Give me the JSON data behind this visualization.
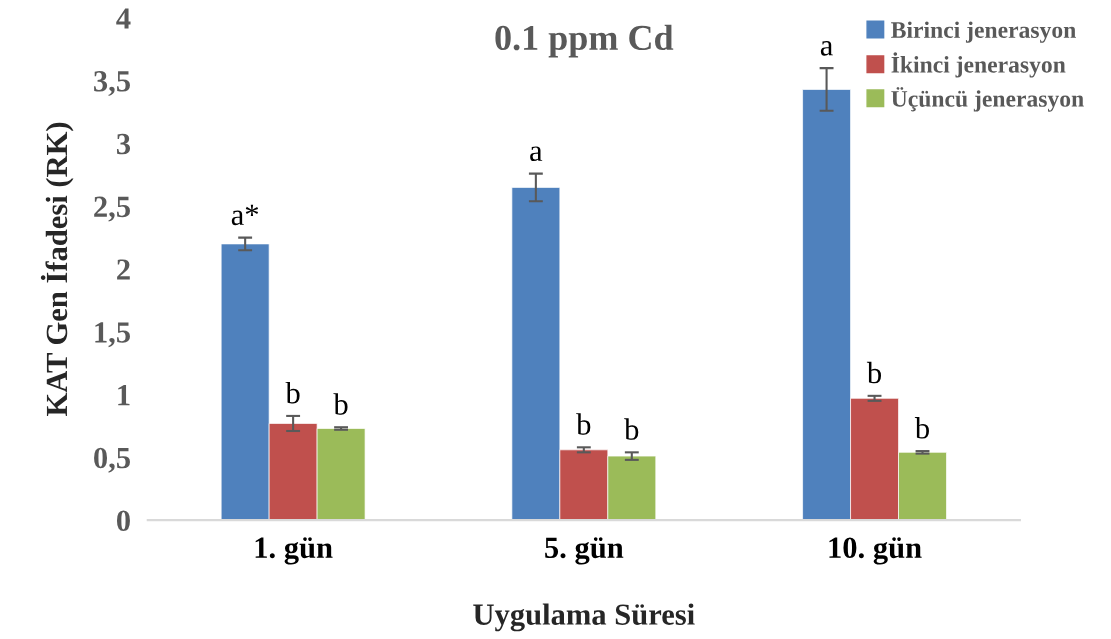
{
  "chart_data": {
    "type": "bar",
    "title": "0.1 ppm Cd",
    "xlabel": "Uygulama Süresi",
    "ylabel": "KAT Gen İfadesi (RK)",
    "categories": [
      "1. gün",
      "5. gün",
      "10. gün"
    ],
    "series": [
      {
        "name": "Birinci jenerasyon",
        "color": "#4f81bd",
        "values": [
          2.2,
          2.65,
          3.43
        ],
        "errors": [
          0.05,
          0.11,
          0.17
        ],
        "value_labels": [
          "a*",
          "a",
          "a"
        ]
      },
      {
        "name": "İkinci jenerasyon",
        "color": "#c0504d",
        "values": [
          0.77,
          0.56,
          0.97
        ],
        "errors": [
          0.06,
          0.02,
          0.02
        ],
        "value_labels": [
          "b",
          "b",
          "b"
        ]
      },
      {
        "name": "Üçüncü jenerasyon",
        "color": "#9bbb59",
        "values": [
          0.73,
          0.51,
          0.54
        ],
        "errors": [
          0.01,
          0.03,
          0.01
        ],
        "value_labels": [
          "b",
          "b",
          "b"
        ]
      }
    ],
    "ylim": [
      0,
      4
    ],
    "yticks": [
      0,
      {
        "value": 0.5,
        "label": "0,5"
      },
      1,
      {
        "value": 1.5,
        "label": "1,5"
      },
      2,
      {
        "value": 2.5,
        "label": "2,5"
      },
      3,
      {
        "value": 3.5,
        "label": "3,5"
      },
      4
    ],
    "grid": false,
    "legend": "top right"
  }
}
